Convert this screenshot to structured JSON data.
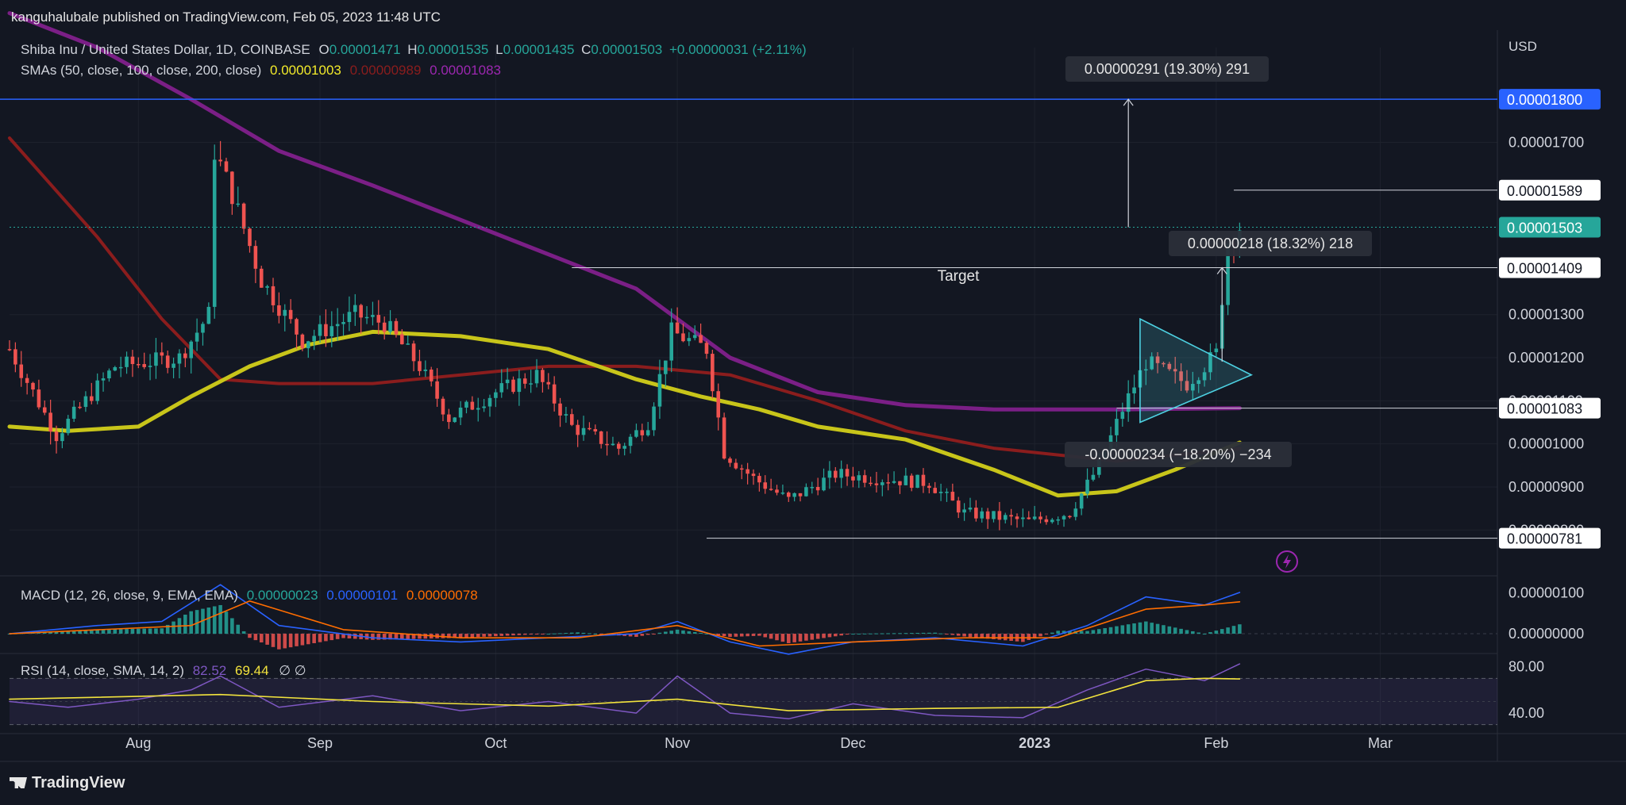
{
  "publisher": "kanguhalubale published on TradingView.com, Feb 05, 2023 11:48 UTC",
  "footer_brand": "TradingView",
  "colors": {
    "background": "#131722",
    "up": "#26a69a",
    "down": "#ef5350",
    "sma50": "#c8c51a",
    "sma100": "#8b1d1d",
    "sma200": "#7b1f86",
    "macd": "#2962ff",
    "signal": "#ff6d00",
    "rsi": "#7e57c2",
    "rsi_ma": "#f2e33d",
    "triangle": "#4dd0e1",
    "current_price": "#26a69a",
    "level_1800": "#2962ff"
  },
  "chart_data": {
    "type": "candlestick",
    "symbol_line": {
      "name": "Shiba Inu / United States Dollar, 1D, COINBASE",
      "o_label": "O",
      "o": "0.00001471",
      "h_label": "H",
      "h": "0.00001535",
      "l_label": "L",
      "l": "0.00001435",
      "c_label": "C",
      "c": "0.00001503",
      "change": "+0.00000031 (+2.11%)"
    },
    "sma_line": {
      "label": "SMAs (50, close, 100, close, 200, close)",
      "v50": "0.00001003",
      "v100": "0.00000989",
      "v200": "0.00001083"
    },
    "currency": "USD",
    "price_ticks": [
      "0.00001700",
      "0.00001300",
      "0.00001200",
      "0.00001100",
      "0.00001000",
      "0.00000900",
      "0.00000800"
    ],
    "price_ticks_values": [
      1.7e-05,
      1.3e-05,
      1.2e-05,
      1.1e-05,
      1e-05,
      9e-06,
      8e-06
    ],
    "x_tick_labels": [
      "Aug",
      "Sep",
      "Oct",
      "Nov",
      "Dec",
      "2023",
      "Feb",
      "Mar"
    ],
    "x_tick_dates": [
      "2022-08-01",
      "2022-09-01",
      "2022-10-01",
      "2022-11-01",
      "2022-12-01",
      "2023-01-01",
      "2023-02-01",
      "2023-03-01"
    ],
    "x_range": [
      "2022-07-10",
      "2023-03-21"
    ],
    "y_range": [
      6.9e-06,
      1.92e-05
    ],
    "price_tags": [
      {
        "label": "0.00001800",
        "value": 1.8e-05,
        "style": "blue"
      },
      {
        "label": "0.00001589",
        "value": 1.589e-05,
        "style": "white"
      },
      {
        "label": "0.00001503",
        "value": 1.503e-05,
        "style": "green"
      },
      {
        "label": "0.00001409",
        "value": 1.409e-05,
        "style": "white"
      },
      {
        "label": "0.00001083",
        "value": 1.083e-05,
        "style": "white"
      },
      {
        "label": "0.00000781",
        "value": 7.81e-06,
        "style": "white"
      }
    ],
    "annotations": {
      "target_label": "Target",
      "measure_up": "0.00000291 (19.30%) 291",
      "measure_mid": "0.00000218 (18.32%) 218",
      "measure_down": "-0.00000234 (−18.20%) −234"
    },
    "sma_series": {
      "sma50_points": [
        [
          "2022-07-10",
          1.04e-05
        ],
        [
          "2022-07-20",
          1.03e-05
        ],
        [
          "2022-08-01",
          1.04e-05
        ],
        [
          "2022-08-10",
          1.11e-05
        ],
        [
          "2022-08-20",
          1.18e-05
        ],
        [
          "2022-08-30",
          1.23e-05
        ],
        [
          "2022-09-10",
          1.26e-05
        ],
        [
          "2022-09-25",
          1.25e-05
        ],
        [
          "2022-10-10",
          1.22e-05
        ],
        [
          "2022-10-25",
          1.15e-05
        ],
        [
          "2022-11-05",
          1.11e-05
        ],
        [
          "2022-11-15",
          1.08e-05
        ],
        [
          "2022-11-25",
          1.04e-05
        ],
        [
          "2022-12-10",
          1.01e-05
        ],
        [
          "2022-12-25",
          9.4e-06
        ],
        [
          "2023-01-05",
          8.8e-06
        ],
        [
          "2023-01-15",
          8.9e-06
        ],
        [
          "2023-01-25",
          9.4e-06
        ],
        [
          "2023-02-05",
          1.003e-05
        ]
      ],
      "sma100_points": [
        [
          "2022-07-10",
          1.71e-05
        ],
        [
          "2022-07-25",
          1.48e-05
        ],
        [
          "2022-08-05",
          1.29e-05
        ],
        [
          "2022-08-15",
          1.15e-05
        ],
        [
          "2022-08-25",
          1.14e-05
        ],
        [
          "2022-09-10",
          1.14e-05
        ],
        [
          "2022-09-25",
          1.16e-05
        ],
        [
          "2022-10-10",
          1.18e-05
        ],
        [
          "2022-10-25",
          1.18e-05
        ],
        [
          "2022-11-10",
          1.16e-05
        ],
        [
          "2022-11-25",
          1.1e-05
        ],
        [
          "2022-12-10",
          1.03e-05
        ],
        [
          "2022-12-25",
          9.9e-06
        ],
        [
          "2023-01-15",
          9.6e-06
        ],
        [
          "2023-02-05",
          9.89e-06
        ]
      ],
      "sma200_points": [
        [
          "2022-07-10",
          2e-05
        ],
        [
          "2022-07-25",
          1.92e-05
        ],
        [
          "2022-08-10",
          1.8e-05
        ],
        [
          "2022-08-25",
          1.68e-05
        ],
        [
          "2022-09-10",
          1.6e-05
        ],
        [
          "2022-09-25",
          1.52e-05
        ],
        [
          "2022-10-10",
          1.44e-05
        ],
        [
          "2022-10-25",
          1.36e-05
        ],
        [
          "2022-11-10",
          1.2e-05
        ],
        [
          "2022-11-25",
          1.12e-05
        ],
        [
          "2022-12-10",
          1.09e-05
        ],
        [
          "2022-12-25",
          1.08e-05
        ],
        [
          "2023-01-15",
          1.08e-05
        ],
        [
          "2023-02-05",
          1.083e-05
        ]
      ]
    },
    "macd": {
      "label": "MACD (12, 26, close, 9, EMA, EMA)",
      "hist": "0.00000023",
      "macd": "0.00000101",
      "signal": "0.00000078",
      "ticks": [
        "0.00000100",
        "0.00000000"
      ],
      "ticks_values": [
        1e-06,
        0
      ],
      "y_range": [
        -6e-07,
        1.3e-06
      ],
      "macd_points": [
        [
          "2022-07-10",
          0.0
        ],
        [
          "2022-07-25",
          2e-07
        ],
        [
          "2022-08-05",
          3e-07
        ],
        [
          "2022-08-15",
          1.2e-06
        ],
        [
          "2022-08-25",
          2e-07
        ],
        [
          "2022-09-10",
          -1e-07
        ],
        [
          "2022-09-25",
          -2e-07
        ],
        [
          "2022-10-10",
          -1e-07
        ],
        [
          "2022-10-25",
          0.0
        ],
        [
          "2022-11-01",
          3e-07
        ],
        [
          "2022-11-10",
          -2e-07
        ],
        [
          "2022-11-20",
          -5e-07
        ],
        [
          "2022-12-01",
          -2e-07
        ],
        [
          "2022-12-15",
          -1e-07
        ],
        [
          "2022-12-30",
          -3e-07
        ],
        [
          "2023-01-10",
          2e-07
        ],
        [
          "2023-01-20",
          9e-07
        ],
        [
          "2023-01-30",
          7e-07
        ],
        [
          "2023-02-05",
          1.01e-06
        ]
      ],
      "signal_points": [
        [
          "2022-07-10",
          0.0
        ],
        [
          "2022-08-10",
          2e-07
        ],
        [
          "2022-08-20",
          8e-07
        ],
        [
          "2022-09-05",
          1e-07
        ],
        [
          "2022-09-25",
          -1e-07
        ],
        [
          "2022-10-15",
          -1e-07
        ],
        [
          "2022-11-01",
          2e-07
        ],
        [
          "2022-11-15",
          -3e-07
        ],
        [
          "2022-12-01",
          -2e-07
        ],
        [
          "2022-12-20",
          -1e-07
        ],
        [
          "2023-01-05",
          -1e-07
        ],
        [
          "2023-01-20",
          6e-07
        ],
        [
          "2023-01-30",
          7e-07
        ],
        [
          "2023-02-05",
          7.8e-07
        ]
      ]
    },
    "rsi": {
      "label": "RSI (14, close, SMA, 14, 2)",
      "value": "82.52",
      "ma": "69.44",
      "extra": "∅ ∅",
      "ticks": [
        "80.00",
        "40.00"
      ],
      "ticks_values": [
        80,
        40
      ],
      "band": [
        30,
        70
      ],
      "y_range": [
        27,
        86
      ],
      "rsi_points": [
        [
          "2022-07-10",
          50
        ],
        [
          "2022-07-20",
          45
        ],
        [
          "2022-08-01",
          52
        ],
        [
          "2022-08-10",
          60
        ],
        [
          "2022-08-15",
          72
        ],
        [
          "2022-08-25",
          45
        ],
        [
          "2022-09-10",
          55
        ],
        [
          "2022-09-25",
          42
        ],
        [
          "2022-10-10",
          50
        ],
        [
          "2022-10-25",
          40
        ],
        [
          "2022-11-01",
          72
        ],
        [
          "2022-11-10",
          40
        ],
        [
          "2022-11-20",
          35
        ],
        [
          "2022-12-01",
          48
        ],
        [
          "2022-12-15",
          38
        ],
        [
          "2022-12-30",
          36
        ],
        [
          "2023-01-10",
          60
        ],
        [
          "2023-01-20",
          78
        ],
        [
          "2023-01-30",
          68
        ],
        [
          "2023-02-05",
          82.52
        ]
      ],
      "ma_points": [
        [
          "2022-07-10",
          52
        ],
        [
          "2022-08-15",
          56
        ],
        [
          "2022-09-10",
          50
        ],
        [
          "2022-10-10",
          46
        ],
        [
          "2022-11-01",
          52
        ],
        [
          "2022-11-20",
          42
        ],
        [
          "2022-12-15",
          44
        ],
        [
          "2023-01-05",
          45
        ],
        [
          "2023-01-20",
          68
        ],
        [
          "2023-01-30",
          70
        ],
        [
          "2023-02-05",
          69.44
        ]
      ]
    }
  }
}
